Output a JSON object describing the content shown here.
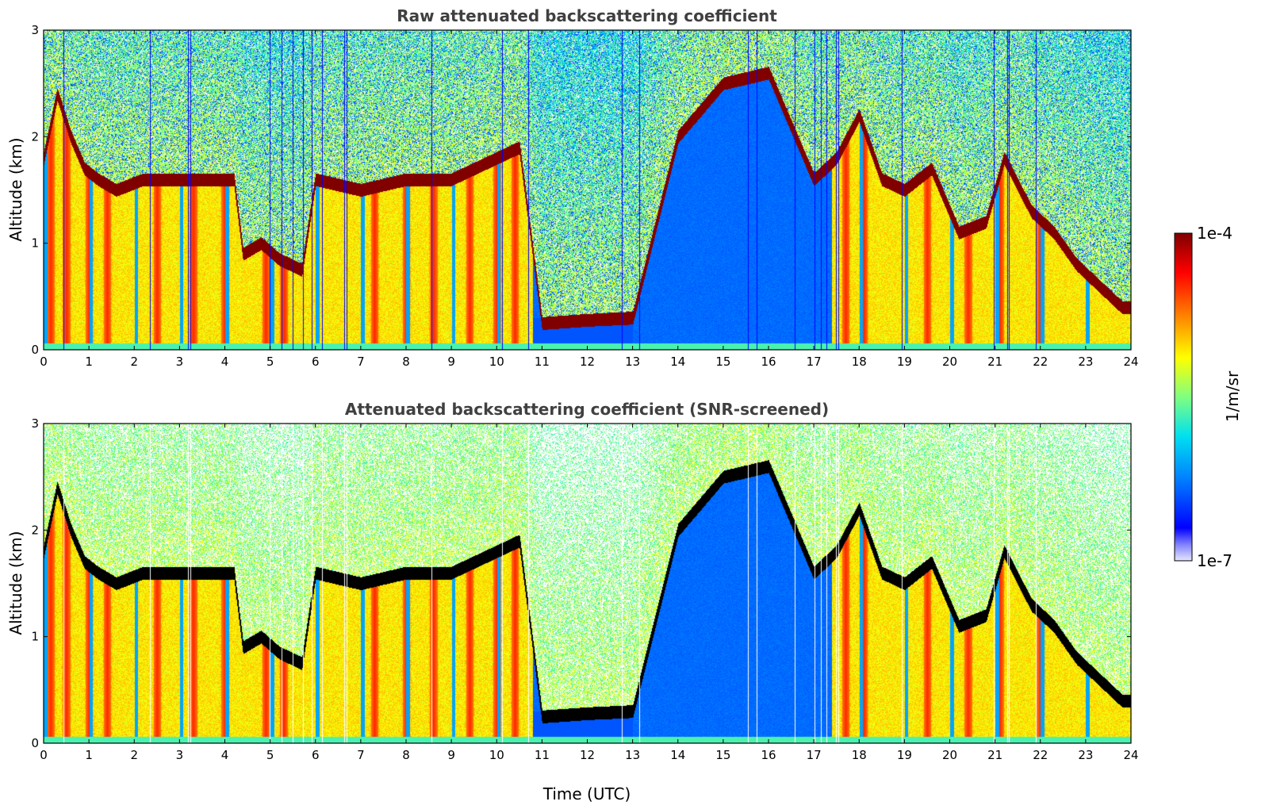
{
  "chart_data": [
    {
      "type": "heatmap",
      "title": "Raw attenuated backscattering coefficient",
      "xlabel": "",
      "ylabel": "Altitude (km)",
      "xlim": [
        0,
        24
      ],
      "ylim": [
        0,
        3
      ],
      "xticks": [
        "0",
        "1",
        "2",
        "3",
        "4",
        "5",
        "6",
        "7",
        "8",
        "9",
        "10",
        "11",
        "12",
        "13",
        "14",
        "15",
        "16",
        "17",
        "18",
        "19",
        "20",
        "21",
        "22",
        "23",
        "24"
      ],
      "yticks": [
        "0",
        "1",
        "2",
        "3"
      ],
      "screened": false,
      "cloud_base_km": [
        [
          0.0,
          1.8
        ],
        [
          0.3,
          2.4
        ],
        [
          0.6,
          2.0
        ],
        [
          0.9,
          1.7
        ],
        [
          1.2,
          1.6
        ],
        [
          1.6,
          1.5
        ],
        [
          2.2,
          1.6
        ],
        [
          3.0,
          1.6
        ],
        [
          3.8,
          1.6
        ],
        [
          4.2,
          1.6
        ],
        [
          4.4,
          0.9
        ],
        [
          4.8,
          1.0
        ],
        [
          5.2,
          0.85
        ],
        [
          5.7,
          0.75
        ],
        [
          6.0,
          1.6
        ],
        [
          7.0,
          1.5
        ],
        [
          8.0,
          1.6
        ],
        [
          9.0,
          1.6
        ],
        [
          9.5,
          1.7
        ],
        [
          10.0,
          1.8
        ],
        [
          10.5,
          1.9
        ],
        [
          11.0,
          0.25
        ],
        [
          12.0,
          0.28
        ],
        [
          13.0,
          0.3
        ],
        [
          14.0,
          2.0
        ],
        [
          15.0,
          2.5
        ],
        [
          16.0,
          2.6
        ],
        [
          17.0,
          1.6
        ],
        [
          17.5,
          1.8
        ],
        [
          18.0,
          2.2
        ],
        [
          18.5,
          1.6
        ],
        [
          19.0,
          1.5
        ],
        [
          19.6,
          1.7
        ],
        [
          20.2,
          1.1
        ],
        [
          20.8,
          1.2
        ],
        [
          21.2,
          1.8
        ],
        [
          21.8,
          1.3
        ],
        [
          22.3,
          1.1
        ],
        [
          22.8,
          0.8
        ],
        [
          23.3,
          0.6
        ],
        [
          23.8,
          0.4
        ]
      ],
      "sweeps_hours": [
        0.15,
        0.5,
        1.0,
        1.4,
        2.5,
        3.3,
        4.0,
        4.9,
        5.3,
        7.3,
        8.0,
        8.6,
        9.4,
        10.0,
        10.4,
        11.8,
        15.3,
        17.7,
        18.1,
        19.5,
        20.4,
        21.1,
        22.0
      ]
    },
    {
      "type": "heatmap",
      "title": "Attenuated backscattering coefficient (SNR-screened)",
      "xlabel": "Time (UTC)",
      "ylabel": "Altitude (km)",
      "xlim": [
        0,
        24
      ],
      "ylim": [
        0,
        3
      ],
      "xticks": [
        "0",
        "1",
        "2",
        "3",
        "4",
        "5",
        "6",
        "7",
        "8",
        "9",
        "10",
        "11",
        "12",
        "13",
        "14",
        "15",
        "16",
        "17",
        "18",
        "19",
        "20",
        "21",
        "22",
        "23",
        "24"
      ],
      "yticks": [
        "0",
        "1",
        "2",
        "3"
      ],
      "screened": true,
      "cloud_base_km": [
        [
          0.0,
          1.8
        ],
        [
          0.3,
          2.4
        ],
        [
          0.6,
          2.0
        ],
        [
          0.9,
          1.7
        ],
        [
          1.2,
          1.6
        ],
        [
          1.6,
          1.5
        ],
        [
          2.2,
          1.6
        ],
        [
          3.0,
          1.6
        ],
        [
          3.8,
          1.6
        ],
        [
          4.2,
          1.6
        ],
        [
          4.4,
          0.9
        ],
        [
          4.8,
          1.0
        ],
        [
          5.2,
          0.85
        ],
        [
          5.7,
          0.75
        ],
        [
          6.0,
          1.6
        ],
        [
          7.0,
          1.5
        ],
        [
          8.0,
          1.6
        ],
        [
          9.0,
          1.6
        ],
        [
          9.5,
          1.7
        ],
        [
          10.0,
          1.8
        ],
        [
          10.5,
          1.9
        ],
        [
          11.0,
          0.25
        ],
        [
          12.0,
          0.28
        ],
        [
          13.0,
          0.3
        ],
        [
          14.0,
          2.0
        ],
        [
          15.0,
          2.5
        ],
        [
          16.0,
          2.6
        ],
        [
          17.0,
          1.6
        ],
        [
          17.5,
          1.8
        ],
        [
          18.0,
          2.2
        ],
        [
          18.5,
          1.6
        ],
        [
          19.0,
          1.5
        ],
        [
          19.6,
          1.7
        ],
        [
          20.2,
          1.1
        ],
        [
          20.8,
          1.2
        ],
        [
          21.2,
          1.8
        ],
        [
          21.8,
          1.3
        ],
        [
          22.3,
          1.1
        ],
        [
          22.8,
          0.8
        ],
        [
          23.3,
          0.6
        ],
        [
          23.8,
          0.4
        ]
      ],
      "sweeps_hours": [
        0.15,
        0.5,
        1.0,
        1.4,
        2.5,
        3.3,
        4.0,
        4.9,
        5.3,
        7.3,
        8.0,
        8.6,
        9.4,
        10.0,
        10.4,
        11.8,
        15.3,
        17.7,
        18.1,
        19.5,
        20.4,
        21.1,
        22.0
      ]
    }
  ],
  "colorbar": {
    "label": "1/m/sr",
    "max_label": "1e-4",
    "min_label": "1e-7",
    "colormap": "jet",
    "colors": [
      "#e6e6ff",
      "#0000ff",
      "#0080ff",
      "#00e0f0",
      "#80ff80",
      "#ffff00",
      "#ff8000",
      "#ff0000",
      "#800000"
    ]
  }
}
